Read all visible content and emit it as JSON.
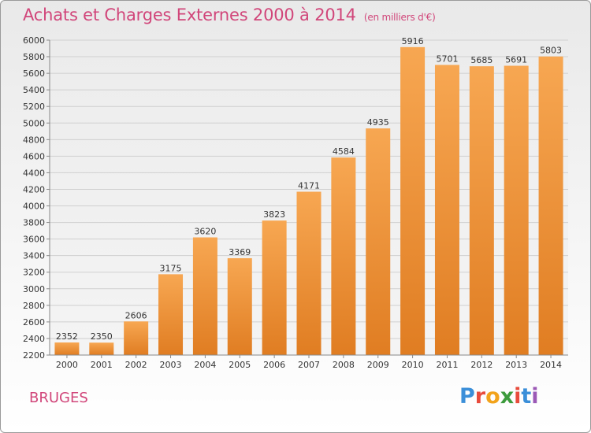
{
  "title": "Achats et Charges Externes 2000 à 2014",
  "subtitle": "(en milliers d'€)",
  "commune": "BRUGES",
  "logo": {
    "letters": [
      "P",
      "r",
      "o",
      "x",
      "i",
      "t",
      "i"
    ],
    "colors": [
      "#3b8fd9",
      "#e84b3c",
      "#f2a31b",
      "#3c9b3c",
      "#e84b3c",
      "#3b8fd9",
      "#9b59b6"
    ]
  },
  "chart_data": {
    "type": "bar",
    "categories": [
      "2000",
      "2001",
      "2002",
      "2003",
      "2004",
      "2005",
      "2006",
      "2007",
      "2008",
      "2009",
      "2010",
      "2011",
      "2012",
      "2013",
      "2014"
    ],
    "values": [
      2352,
      2350,
      2606,
      3175,
      3620,
      3369,
      3823,
      4171,
      4584,
      4935,
      5916,
      5701,
      5685,
      5691,
      5803
    ],
    "ylim": [
      2200,
      6000
    ],
    "yticks": [
      2200,
      2400,
      2600,
      2800,
      3000,
      3200,
      3400,
      3600,
      3800,
      4000,
      4200,
      4400,
      4600,
      4800,
      5000,
      5200,
      5400,
      5600,
      5800,
      6000
    ],
    "grid": true,
    "colors": {
      "bar_light": "#f7a752",
      "bar_dark": "#e07d22",
      "grid": "#cfcfcf",
      "axis": "#888888"
    }
  }
}
